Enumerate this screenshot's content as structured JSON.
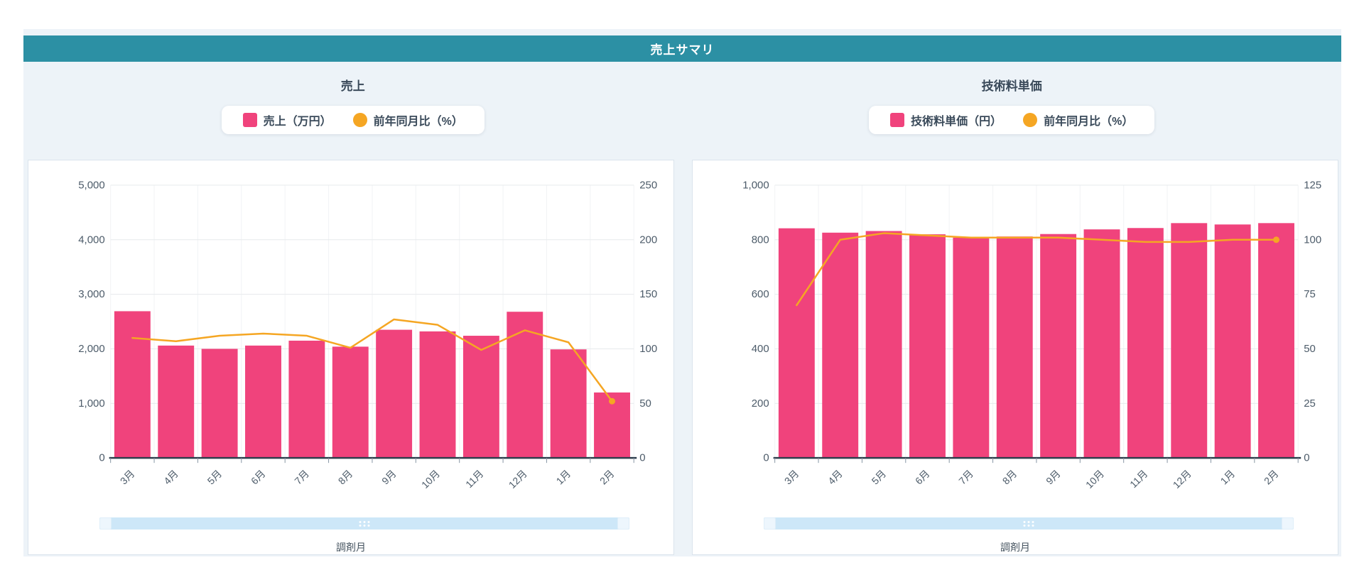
{
  "header": {
    "title": "売上サマリ",
    "bar_color": "#2C90A4"
  },
  "ui_colors": {
    "background": "#EDF3F8",
    "bar_pink": "#F0437C",
    "line_orange": "#F5A623",
    "axis_text": "#4C5B69",
    "axis_line": "#2F3E4D",
    "grid_line": "#E7EAEC",
    "grid_line_vertical": "#F1F3F5",
    "scrollbar_track": "#CDE7F8"
  },
  "chart_data": [
    {
      "type": "bar",
      "title": "売上",
      "xlabel": "調剤月",
      "categories": [
        "3月",
        "4月",
        "5月",
        "6月",
        "7月",
        "8月",
        "9月",
        "10月",
        "11月",
        "12月",
        "1月",
        "2月"
      ],
      "series": [
        {
          "name": "売上（万円）",
          "type": "bar",
          "axis": "left",
          "swatch": "square",
          "color": "#F0437C",
          "values": [
            2690,
            2060,
            2000,
            2060,
            2150,
            2040,
            2350,
            2320,
            2240,
            2680,
            1990,
            1200
          ]
        },
        {
          "name": "前年同月比（%）",
          "type": "line",
          "axis": "right",
          "swatch": "circle",
          "color": "#F5A623",
          "values": [
            110,
            107,
            112,
            114,
            112,
            101,
            127,
            122,
            99,
            117,
            106,
            52
          ]
        }
      ],
      "y_left": {
        "min": 0,
        "max": 5000,
        "step": 1000
      },
      "y_right": {
        "min": 0,
        "max": 250,
        "step": 50
      },
      "grid": true,
      "legend_position": "top"
    },
    {
      "type": "bar",
      "title": "技術料単価",
      "xlabel": "調剤月",
      "categories": [
        "3月",
        "4月",
        "5月",
        "6月",
        "7月",
        "8月",
        "9月",
        "10月",
        "11月",
        "12月",
        "1月",
        "2月"
      ],
      "series": [
        {
          "name": "技術料単価（円）",
          "type": "bar",
          "axis": "left",
          "swatch": "square",
          "color": "#F0437C",
          "values": [
            842,
            826,
            832,
            820,
            808,
            812,
            821,
            838,
            843,
            861,
            856,
            861
          ]
        },
        {
          "name": "前年同月比（%）",
          "type": "line",
          "axis": "right",
          "swatch": "circle",
          "color": "#F5A623",
          "values": [
            70,
            100,
            103,
            102,
            101,
            101,
            101,
            100,
            99,
            99,
            100,
            100
          ]
        }
      ],
      "y_left": {
        "min": 0,
        "max": 1000,
        "step": 200
      },
      "y_right": {
        "min": 0,
        "max": 125,
        "step": 25
      },
      "grid": true,
      "legend_position": "top"
    }
  ]
}
